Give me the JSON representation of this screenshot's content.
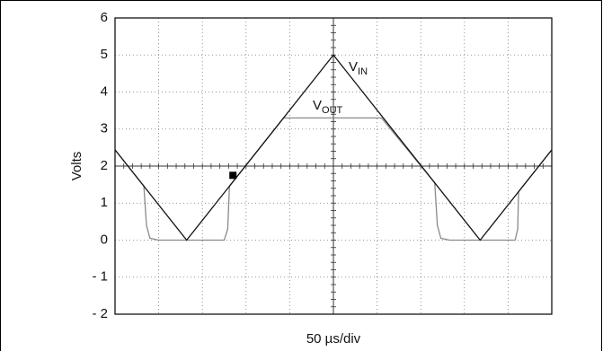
{
  "chart_data": {
    "type": "line",
    "y_label": "Volts",
    "x_label": "50 µs/div",
    "xlim": [
      0,
      500
    ],
    "xticks": [
      0,
      50,
      100,
      150,
      200,
      250,
      300,
      350,
      400,
      450,
      500
    ],
    "ylim": [
      -2,
      6
    ],
    "yticks": [
      {
        "value": -2,
        "label": "- 2"
      },
      {
        "value": -1,
        "label": "- 1"
      },
      0,
      1,
      2,
      3,
      4,
      5,
      6
    ],
    "grid": true,
    "series": [
      {
        "name": "VIN",
        "color": "#111111",
        "x": [
          0,
          82,
          250,
          418,
          500
        ],
        "values": [
          2.44,
          0,
          5,
          0,
          2.44
        ]
      },
      {
        "name": "VOUT",
        "color": "#8a8a8a",
        "x": [
          0,
          33,
          36,
          40,
          50,
          125,
          129,
          131,
          193,
          305,
          366,
          369,
          373,
          383,
          458,
          461,
          462,
          500
        ],
        "values": [
          2.44,
          1.46,
          0.4,
          0.05,
          0,
          0,
          0.3,
          1.46,
          3.3,
          3.3,
          1.55,
          0.4,
          0.05,
          0,
          0,
          0.3,
          1.31,
          2.44
        ]
      }
    ],
    "annotations": [
      {
        "text": "V",
        "sub": "IN"
      },
      {
        "text": "V",
        "sub": "OUT"
      }
    ],
    "trigger": {
      "x": 135,
      "y": 1.75
    }
  }
}
